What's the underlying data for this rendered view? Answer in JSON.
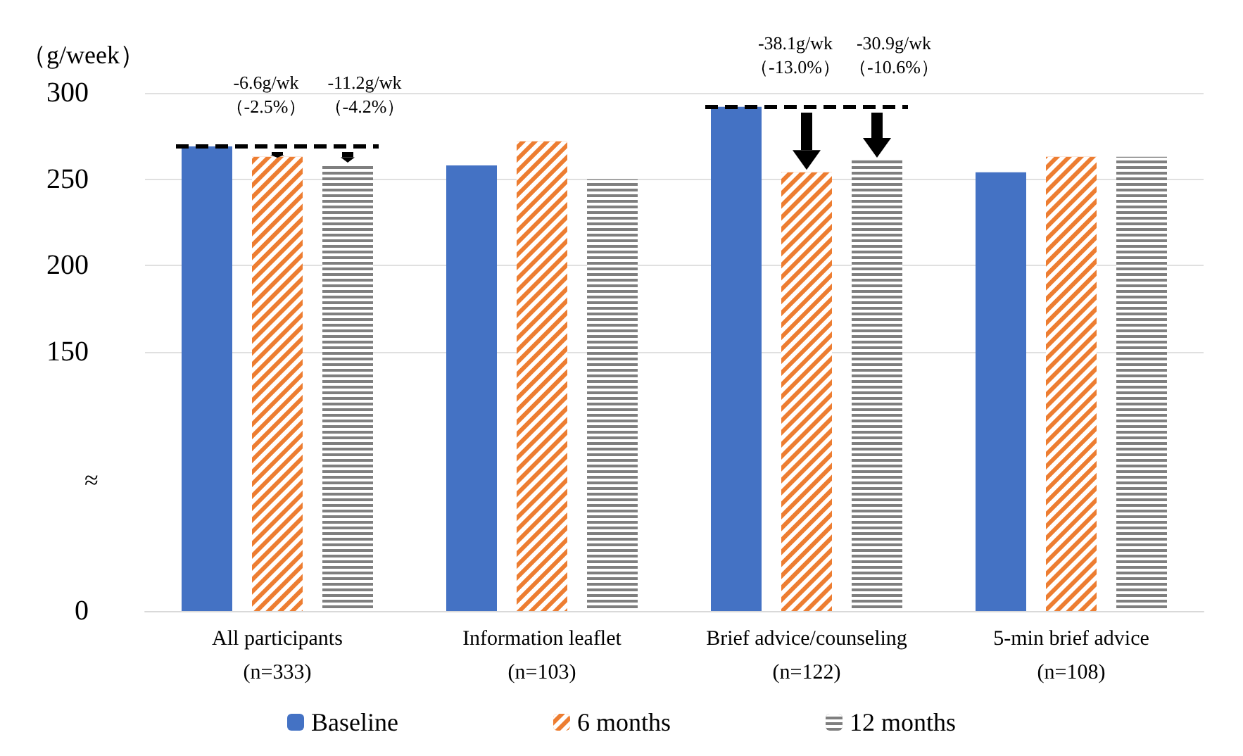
{
  "chart_data": {
    "type": "bar",
    "ylabel": "（g/week）",
    "categories": [
      "All participants\n(n=333)",
      "Information leaflet\n(n=103)",
      "Brief advice/counseling\n(n=122)",
      "5-min brief advice\n(n=108)"
    ],
    "series": [
      {
        "name": "Baseline",
        "color": "#4472c4",
        "values": [
          269,
          258,
          292,
          254
        ]
      },
      {
        "name": "6 months",
        "color": "#ed7d31",
        "values": [
          263,
          272,
          254,
          263
        ]
      },
      {
        "name": "12 months",
        "color": "#7f7f7f",
        "values": [
          258,
          250,
          261,
          263
        ]
      }
    ],
    "ylim": [
      0,
      300
    ],
    "yticks": [
      0,
      150,
      200,
      250,
      300
    ],
    "grid": "y",
    "legend": "bottom",
    "annotations": [
      "-6.6g/wk\n（-2.5%）",
      "-11.2g/wk\n（-4.2%）",
      "-38.1g/wk\n（-13.0%）",
      "-30.9g/wk\n（-10.6%）",
      "≈"
    ]
  }
}
